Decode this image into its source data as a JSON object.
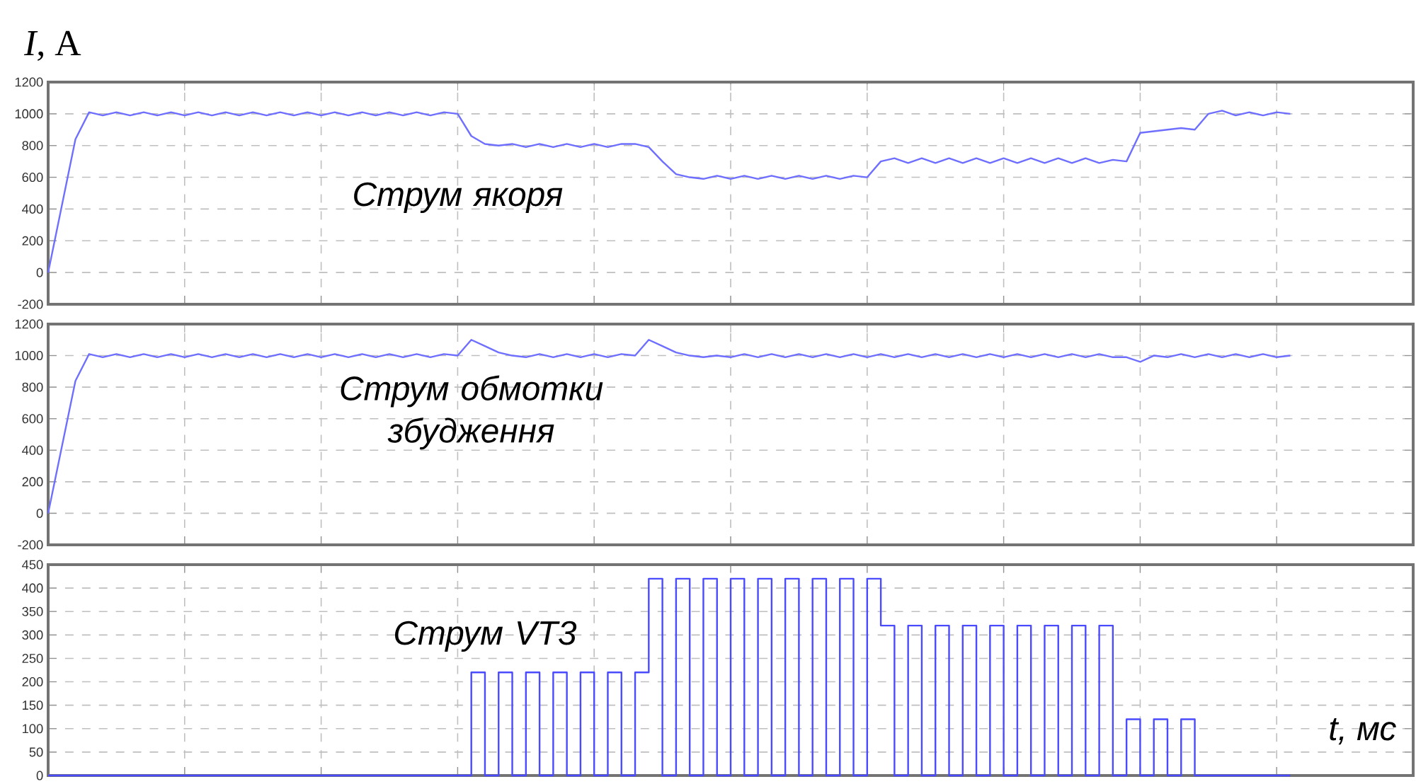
{
  "chart_data": [
    {
      "type": "line",
      "ylabel": "*I*, A",
      "ylim": [
        -200,
        1200
      ],
      "yticks": [
        -200,
        0,
        200,
        400,
        600,
        800,
        1000,
        1200
      ],
      "tick_labels": "y",
      "grid": true,
      "annotations": [
        "Струм якоря"
      ],
      "categories": [
        null,
        null,
        null,
        null,
        null,
        null,
        null,
        null,
        null,
        null,
        null,
        null,
        null,
        null,
        null,
        null,
        null,
        null,
        null,
        null,
        null,
        null,
        null,
        null,
        null,
        null,
        null,
        null,
        null,
        null,
        null,
        null,
        null,
        null,
        null,
        null,
        null,
        null,
        null,
        null,
        null,
        null,
        null,
        null,
        null,
        null,
        null,
        null,
        null,
        null,
        null,
        null,
        null,
        null,
        null,
        null,
        null,
        null,
        null,
        null,
        null,
        null,
        null,
        null,
        null,
        null,
        null,
        null,
        null,
        null,
        null,
        null,
        null,
        null,
        null,
        null,
        null,
        null,
        null,
        null,
        null,
        null,
        null,
        null,
        null,
        null,
        null,
        null,
        null,
        null,
        null,
        null,
        null,
        null,
        null,
        null,
        null,
        null,
        null,
        null,
        null
      ],
      "series": [
        {
          "color": "#6f6fff",
          "values": [
            0,
            420,
            840,
            1010,
            990,
            1010,
            990,
            1010,
            990,
            1010,
            990,
            1010,
            990,
            1010,
            990,
            1010,
            990,
            1010,
            990,
            1010,
            990,
            1010,
            990,
            1010,
            990,
            1010,
            990,
            1010,
            990,
            1010,
            1000,
            860,
            810,
            800,
            810,
            790,
            810,
            790,
            810,
            790,
            810,
            790,
            810,
            810,
            790,
            700,
            620,
            600,
            590,
            610,
            590,
            610,
            590,
            610,
            590,
            610,
            590,
            610,
            590,
            610,
            600,
            700,
            720,
            690,
            720,
            690,
            720,
            690,
            720,
            690,
            720,
            690,
            720,
            690,
            720,
            690,
            720,
            690,
            710,
            700,
            880,
            890,
            900,
            910,
            900,
            1000,
            1020,
            990,
            1010,
            990,
            1010,
            1000,
            null,
            null,
            null,
            null,
            null,
            null,
            null,
            null,
            null
          ]
        }
      ]
    },
    {
      "type": "line",
      "ylim": [
        -200,
        1200
      ],
      "yticks": [
        -200,
        0,
        200,
        400,
        600,
        800,
        1000,
        1200
      ],
      "tick_labels": "y",
      "grid": true,
      "annotations": [
        "Струм обмотки збудження"
      ],
      "categories": [
        null,
        null,
        null,
        null,
        null,
        null,
        null,
        null,
        null,
        null,
        null,
        null,
        null,
        null,
        null,
        null,
        null,
        null,
        null,
        null,
        null,
        null,
        null,
        null,
        null,
        null,
        null,
        null,
        null,
        null,
        null,
        null,
        null,
        null,
        null,
        null,
        null,
        null,
        null,
        null,
        null,
        null,
        null,
        null,
        null,
        null,
        null,
        null,
        null,
        null,
        null,
        null,
        null,
        null,
        null,
        null,
        null,
        null,
        null,
        null,
        null,
        null,
        null,
        null,
        null,
        null,
        null,
        null,
        null,
        null,
        null,
        null,
        null,
        null,
        null,
        null,
        null,
        null,
        null,
        null,
        null,
        null,
        null,
        null,
        null,
        null,
        null,
        null,
        null,
        null,
        null,
        null,
        null,
        null,
        null,
        null,
        null,
        null,
        null,
        null,
        null
      ],
      "series": [
        {
          "color": "#6f6fff",
          "values": [
            0,
            420,
            840,
            1010,
            990,
            1010,
            990,
            1010,
            990,
            1010,
            990,
            1010,
            990,
            1010,
            990,
            1010,
            990,
            1010,
            990,
            1010,
            990,
            1010,
            990,
            1010,
            990,
            1010,
            990,
            1010,
            990,
            1010,
            1000,
            1100,
            1060,
            1020,
            1000,
            990,
            1010,
            990,
            1010,
            990,
            1010,
            990,
            1010,
            1000,
            1100,
            1060,
            1020,
            1000,
            990,
            1000,
            990,
            1010,
            990,
            1010,
            990,
            1010,
            990,
            1010,
            990,
            1010,
            990,
            1010,
            990,
            1010,
            990,
            1010,
            990,
            1010,
            990,
            1010,
            990,
            1010,
            990,
            1010,
            990,
            1010,
            990,
            1010,
            990,
            990,
            960,
            1000,
            990,
            1010,
            990,
            1010,
            990,
            1010,
            990,
            1010,
            990,
            1000,
            null,
            null,
            null,
            null,
            null,
            null,
            null,
            null,
            null
          ]
        }
      ]
    },
    {
      "type": "step",
      "xlabel": "t, мс",
      "ylim": [
        0,
        450
      ],
      "yticks": [
        0,
        50,
        100,
        150,
        200,
        250,
        300,
        350,
        400,
        450
      ],
      "tick_labels": "y",
      "grid": true,
      "annotations": [
        "Струм VT3"
      ],
      "categories": [
        null,
        null,
        null,
        null,
        null,
        null,
        null,
        null,
        null,
        null,
        null,
        null,
        null,
        null,
        null,
        null,
        null,
        null,
        null,
        null,
        null,
        null,
        null,
        null,
        null,
        null,
        null,
        null,
        null,
        null,
        null,
        null,
        null,
        null,
        null,
        null,
        null,
        null,
        null,
        null,
        null,
        null,
        null,
        null,
        null,
        null,
        null,
        null,
        null,
        null,
        null,
        null,
        null,
        null,
        null,
        null,
        null,
        null,
        null,
        null,
        null,
        null,
        null,
        null,
        null,
        null,
        null,
        null,
        null,
        null,
        null,
        null,
        null,
        null,
        null,
        null,
        null,
        null,
        null,
        null,
        null,
        null,
        null,
        null,
        null,
        null,
        null,
        null,
        null,
        null,
        null,
        null,
        null,
        null,
        null,
        null,
        null,
        null,
        null,
        null,
        null
      ],
      "series": [
        {
          "color": "#4a4aff",
          "values": [
            0,
            0,
            0,
            0,
            0,
            0,
            0,
            0,
            0,
            0,
            0,
            0,
            0,
            0,
            0,
            0,
            0,
            0,
            0,
            0,
            0,
            0,
            0,
            0,
            0,
            0,
            0,
            0,
            0,
            0,
            0,
            220,
            0,
            220,
            0,
            220,
            0,
            220,
            0,
            220,
            0,
            220,
            0,
            220,
            420,
            0,
            420,
            0,
            420,
            0,
            420,
            0,
            420,
            0,
            420,
            0,
            420,
            0,
            420,
            0,
            420,
            320,
            0,
            320,
            0,
            320,
            0,
            320,
            0,
            320,
            0,
            320,
            0,
            320,
            0,
            320,
            0,
            320,
            0,
            120,
            0,
            120,
            0,
            120,
            0,
            0,
            0,
            0,
            0,
            0,
            0,
            0,
            null,
            null,
            null,
            null,
            null,
            null,
            null,
            null,
            null
          ]
        }
      ]
    }
  ]
}
